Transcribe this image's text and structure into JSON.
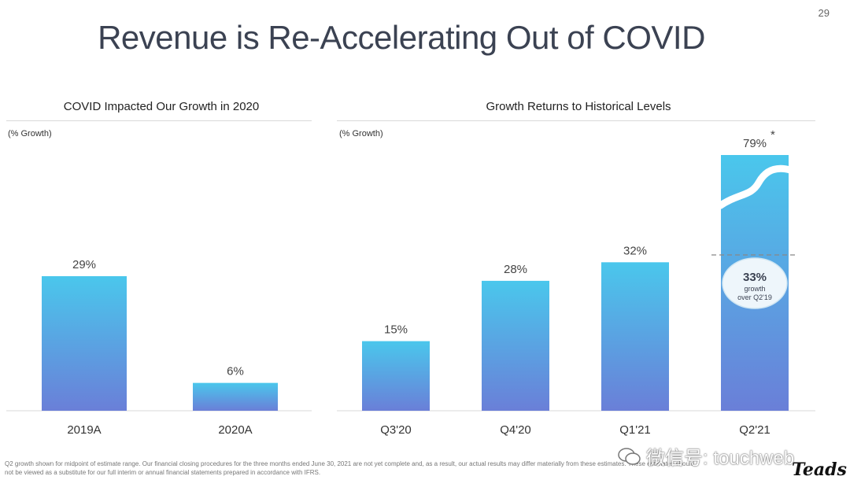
{
  "page_number": "29",
  "title": "Revenue is Re-Accelerating Out of COVID",
  "left_panel": {
    "title": "COVID Impacted Our Growth in 2020",
    "unit": "(% Growth)"
  },
  "right_panel": {
    "title": "Growth Returns to Historical Levels",
    "unit": "(% Growth)"
  },
  "callout": {
    "value": "33%",
    "line1": "growth",
    "line2": "over Q2'19"
  },
  "asterisk": "*",
  "footnote": {
    "line1": "Q2 growth shown for midpoint of estimate range. Our financial closing procedures for the three months ended June 30, 2021 are not yet complete and, as a result, our actual results may differ materially from these estimates. These estimates should",
    "line2": "not be viewed as a substitute for our full interim or annual financial statements prepared in accordance with IFRS."
  },
  "watermark": "微信号: touchweb",
  "logo": "Teads",
  "colors": {
    "bar_top": "#4ac7ec",
    "bar_bottom": "#6a7fd8",
    "callout_fill": "#eef6fb",
    "callout_stroke": "#cfe6f3"
  },
  "chart_data": [
    {
      "type": "bar",
      "title": "COVID Impacted Our Growth in 2020",
      "ylabel": "(% Growth)",
      "categories": [
        "2019A",
        "2020A"
      ],
      "values": [
        29,
        6
      ],
      "data_labels": [
        "29%",
        "6%"
      ],
      "ylim": [
        0,
        80
      ]
    },
    {
      "type": "bar",
      "title": "Growth Returns to Historical Levels",
      "ylabel": "(% Growth)",
      "categories": [
        "Q3'20",
        "Q4'20",
        "Q1'21",
        "Q2'21"
      ],
      "values": [
        15,
        28,
        32,
        79
      ],
      "data_labels": [
        "15%",
        "28%",
        "32%",
        "79%"
      ],
      "ylim": [
        0,
        80
      ],
      "axis_break_on_last_bar": true
    }
  ]
}
